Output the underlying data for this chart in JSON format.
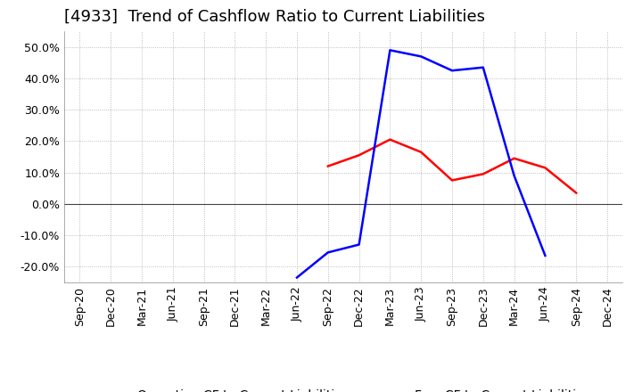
{
  "title": "[4933]  Trend of Cashflow Ratio to Current Liabilities",
  "ylim": [
    -0.25,
    0.55
  ],
  "yticks": [
    -0.2,
    -0.1,
    0.0,
    0.1,
    0.2,
    0.3,
    0.4,
    0.5
  ],
  "background_color": "#ffffff",
  "grid_color": "#aaaaaa",
  "x_labels": [
    "Sep-20",
    "Dec-20",
    "Mar-21",
    "Jun-21",
    "Sep-21",
    "Dec-21",
    "Mar-22",
    "Jun-22",
    "Sep-22",
    "Dec-22",
    "Mar-23",
    "Jun-23",
    "Sep-23",
    "Dec-23",
    "Mar-24",
    "Jun-24",
    "Sep-24",
    "Dec-24"
  ],
  "operating_cf": [
    null,
    null,
    null,
    null,
    null,
    null,
    null,
    null,
    0.12,
    0.155,
    0.205,
    0.165,
    0.075,
    0.095,
    0.145,
    0.115,
    0.035,
    null
  ],
  "free_cf": [
    null,
    null,
    null,
    null,
    null,
    null,
    null,
    -0.235,
    -0.155,
    -0.13,
    0.49,
    0.47,
    0.425,
    0.435,
    0.09,
    -0.165,
    null,
    null
  ],
  "operating_color": "#ff0000",
  "free_color": "#0000ff",
  "line_width": 1.8,
  "title_fontsize": 13,
  "tick_fontsize": 9,
  "legend_fontsize": 10
}
